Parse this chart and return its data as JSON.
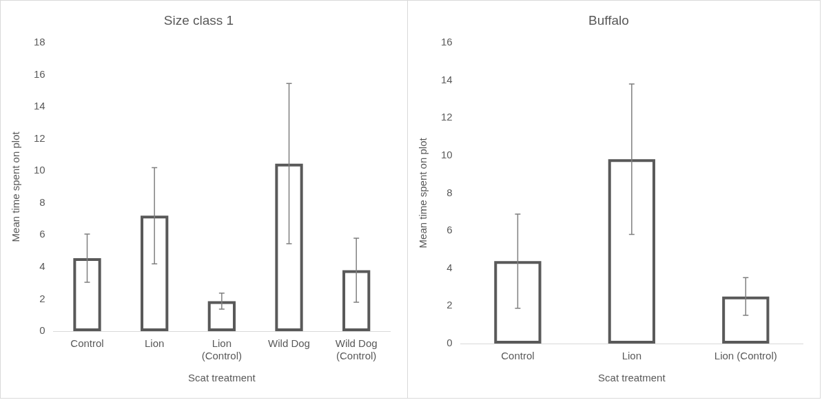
{
  "chart_data": [
    {
      "type": "bar",
      "title": "Size class 1",
      "xlabel": "Scat treatment",
      "ylabel": "Mean time spent on plot",
      "categories": [
        "Control",
        "Lion",
        "Lion (Control)",
        "Wild Dog",
        "Wild Dog (Control)"
      ],
      "values": [
        4.55,
        7.2,
        1.87,
        10.45,
        3.8
      ],
      "errors": [
        1.5,
        3.0,
        0.5,
        5.0,
        2.0
      ],
      "color": "#595959",
      "ylim": [
        0,
        18
      ],
      "yticks": [
        0,
        2,
        4,
        6,
        8,
        10,
        12,
        14,
        16,
        18
      ],
      "grid": false,
      "legend": false
    },
    {
      "type": "bar",
      "title": "Buffalo",
      "xlabel": "Scat treatment",
      "ylabel": "Mean time spent on plot",
      "categories": [
        "Control",
        "Lion",
        "Lion (Control)"
      ],
      "values": [
        4.38,
        9.8,
        2.5
      ],
      "errors": [
        2.5,
        4.0,
        1.0
      ],
      "color": "#595959",
      "ylim": [
        0,
        16
      ],
      "yticks": [
        0,
        2,
        4,
        6,
        8,
        10,
        12,
        14,
        16
      ],
      "grid": false,
      "legend": false
    }
  ]
}
